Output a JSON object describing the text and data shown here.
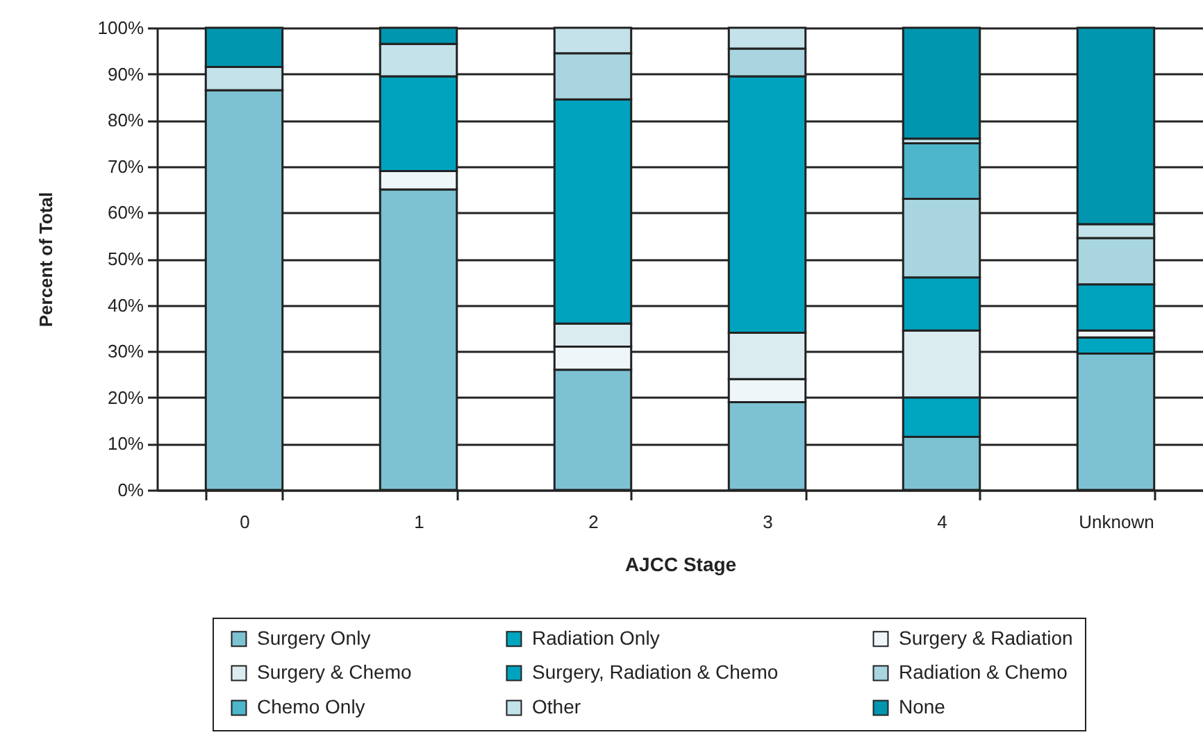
{
  "chart_data": {
    "type": "bar",
    "stacked": true,
    "xlabel": "AJCC Stage",
    "ylabel": "Percent of Total",
    "categories": [
      "0",
      "1",
      "2",
      "3",
      "4",
      "Unknown"
    ],
    "ylim": [
      0,
      100
    ],
    "yticks": [
      {
        "value": 0,
        "label": "0%"
      },
      {
        "value": 10,
        "label": "10%"
      },
      {
        "value": 20,
        "label": "20%"
      },
      {
        "value": 30,
        "label": "30%"
      },
      {
        "value": 40,
        "label": "40%"
      },
      {
        "value": 50,
        "label": "50%"
      },
      {
        "value": 60,
        "label": "60%"
      },
      {
        "value": 70,
        "label": "70%"
      },
      {
        "value": 80,
        "label": "80%"
      },
      {
        "value": 90,
        "label": "90%"
      },
      {
        "value": 100,
        "label": "100%"
      }
    ],
    "grid": "y",
    "legend": "bottom",
    "series": [
      {
        "name": "Surgery Only",
        "color": "#7dc2d3",
        "values": [
          86.5,
          65,
          26,
          19,
          11.5,
          29.5
        ]
      },
      {
        "name": "Radiation Only",
        "color": "#00a5c0",
        "values": [
          null,
          null,
          null,
          null,
          8.5,
          3.5
        ]
      },
      {
        "name": "Surgery & Radiation",
        "color": "#eef6f9",
        "values": [
          null,
          4,
          5,
          5,
          null,
          1.5
        ]
      },
      {
        "name": "Surgery & Chemo",
        "color": "#dbecf1",
        "values": [
          null,
          null,
          5,
          10,
          14.5,
          null
        ]
      },
      {
        "name": "Surgery, Radiation & Chemo",
        "color": "#00a3be",
        "values": [
          null,
          20.5,
          48.5,
          55.5,
          11.5,
          10
        ]
      },
      {
        "name": "Radiation & Chemo",
        "color": "#a8d5e0",
        "values": [
          null,
          null,
          10,
          6,
          17,
          10
        ]
      },
      {
        "name": "Chemo Only",
        "color": "#4db5cc",
        "values": [
          null,
          null,
          null,
          null,
          12,
          null
        ]
      },
      {
        "name": "Other",
        "color": "#c3e2ea",
        "values": [
          5,
          7,
          5.5,
          4.5,
          1,
          3
        ]
      },
      {
        "name": "None",
        "color": "#0096b0",
        "values": [
          8.5,
          3.5,
          null,
          null,
          24,
          42.5
        ]
      }
    ]
  }
}
